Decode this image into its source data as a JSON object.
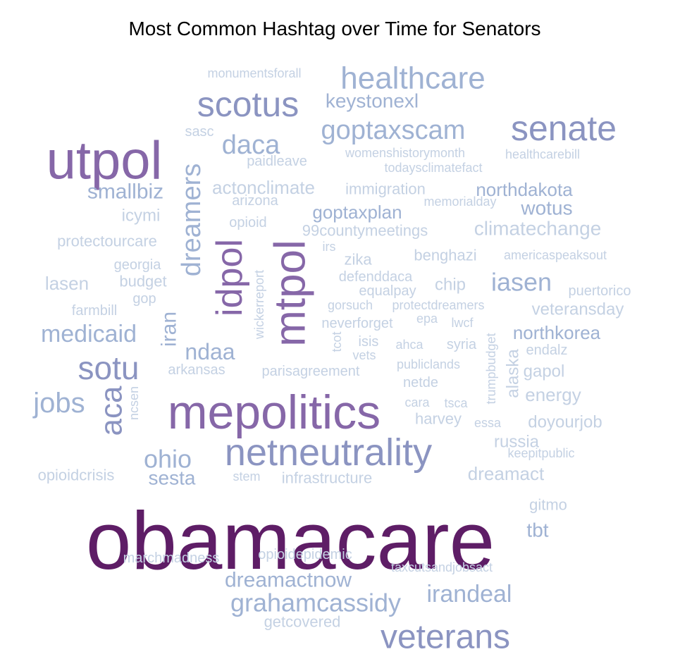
{
  "title": "Most Common Hashtag over Time for Senators",
  "colors": {
    "dark": "#5e1d66",
    "purple": "#8667a8",
    "blue": "#8b94c1",
    "light_blue": "#9fb2d3",
    "pale": "#c4d1e3"
  },
  "words": [
    {
      "text": "obamacare",
      "tone": "dark"
    },
    {
      "text": "utpol",
      "tone": "purple"
    },
    {
      "text": "mepolitics",
      "tone": "purple"
    },
    {
      "text": "mtpol",
      "tone": "purple"
    },
    {
      "text": "idpol",
      "tone": "purple"
    },
    {
      "text": "netneutrality",
      "tone": "blue"
    },
    {
      "text": "senate",
      "tone": "blue"
    },
    {
      "text": "scotus",
      "tone": "blue"
    },
    {
      "text": "veterans",
      "tone": "blue"
    },
    {
      "text": "sotu",
      "tone": "blue"
    },
    {
      "text": "aca",
      "tone": "blue"
    },
    {
      "text": "healthcare",
      "tone": "light_blue"
    },
    {
      "text": "goptaxscam",
      "tone": "light_blue"
    },
    {
      "text": "daca",
      "tone": "light_blue"
    },
    {
      "text": "dreamers",
      "tone": "light_blue"
    },
    {
      "text": "jobs",
      "tone": "light_blue"
    },
    {
      "text": "medicaid",
      "tone": "light_blue"
    },
    {
      "text": "ohio",
      "tone": "light_blue"
    },
    {
      "text": "grahamcassidy",
      "tone": "light_blue"
    },
    {
      "text": "irandeal",
      "tone": "light_blue"
    },
    {
      "text": "iasen",
      "tone": "light_blue"
    },
    {
      "text": "keystonexl",
      "tone": "light_blue"
    },
    {
      "text": "iran",
      "tone": "light_blue"
    },
    {
      "text": "ndaa",
      "tone": "light_blue"
    },
    {
      "text": "dreamactnow",
      "tone": "light_blue"
    },
    {
      "text": "smallbiz",
      "tone": "light_blue"
    },
    {
      "text": "sesta",
      "tone": "light_blue"
    },
    {
      "text": "tbt",
      "tone": "light_blue"
    },
    {
      "text": "northdakota",
      "tone": "light_blue"
    },
    {
      "text": "wotus",
      "tone": "light_blue"
    },
    {
      "text": "northkorea",
      "tone": "light_blue"
    },
    {
      "text": "climatechange",
      "tone": "pale"
    },
    {
      "text": "goptaxplan",
      "tone": "light_blue"
    },
    {
      "text": "dreamact",
      "tone": "pale"
    },
    {
      "text": "russia",
      "tone": "pale"
    },
    {
      "text": "energy",
      "tone": "pale"
    },
    {
      "text": "doyourjob",
      "tone": "pale"
    },
    {
      "text": "gapol",
      "tone": "pale"
    },
    {
      "text": "alaska",
      "tone": "pale"
    },
    {
      "text": "acton­climate",
      "tone": "pale"
    },
    {
      "text": "immigration",
      "tone": "pale"
    },
    {
      "text": "99countymeetings",
      "tone": "pale"
    },
    {
      "text": "protectourcare",
      "tone": "pale"
    },
    {
      "text": "lasen",
      "tone": "pale"
    },
    {
      "text": "icymi",
      "tone": "pale"
    },
    {
      "text": "opioidcrisis",
      "tone": "pale"
    },
    {
      "text": "infrastructure",
      "tone": "pale"
    },
    {
      "text": "veteransday",
      "tone": "pale"
    },
    {
      "text": "benghazi",
      "tone": "pale"
    },
    {
      "text": "americaspeaksout",
      "tone": "pale"
    },
    {
      "text": "puertorico",
      "tone": "pale"
    },
    {
      "text": "chip",
      "tone": "pale"
    },
    {
      "text": "zika",
      "tone": "pale"
    },
    {
      "text": "defenddaca",
      "tone": "pale"
    },
    {
      "text": "equalpay",
      "tone": "pale"
    },
    {
      "text": "neverforget",
      "tone": "pale"
    },
    {
      "text": "gorsuch",
      "tone": "pale"
    },
    {
      "text": "protectdreamers",
      "tone": "pale"
    },
    {
      "text": "epa",
      "tone": "pale"
    },
    {
      "text": "lwcf",
      "tone": "pale"
    },
    {
      "text": "isis",
      "tone": "pale"
    },
    {
      "text": "ahca",
      "tone": "pale"
    },
    {
      "text": "syria",
      "tone": "pale"
    },
    {
      "text": "vets",
      "tone": "pale"
    },
    {
      "text": "publiclands",
      "tone": "pale"
    },
    {
      "text": "endalz",
      "tone": "pale"
    },
    {
      "text": "parisagreement",
      "tone": "pale"
    },
    {
      "text": "arkansas",
      "tone": "pale"
    },
    {
      "text": "netde",
      "tone": "pale"
    },
    {
      "text": "cara",
      "tone": "pale"
    },
    {
      "text": "tsca",
      "tone": "pale"
    },
    {
      "text": "harvey",
      "tone": "pale"
    },
    {
      "text": "essa",
      "tone": "pale"
    },
    {
      "text": "keepitpublic",
      "tone": "pale"
    },
    {
      "text": "wickerreport",
      "tone": "pale"
    },
    {
      "text": "tcot",
      "tone": "pale"
    },
    {
      "text": "trumpbudget",
      "tone": "pale"
    },
    {
      "text": "ncsen",
      "tone": "pale"
    },
    {
      "text": "gitmo",
      "tone": "pale"
    },
    {
      "text": "marchmadness",
      "tone": "pale"
    },
    {
      "text": "opioidepidemic",
      "tone": "pale"
    },
    {
      "text": "taxcutsandjobsact",
      "tone": "pale"
    },
    {
      "text": "getcovered",
      "tone": "pale"
    },
    {
      "text": "stem",
      "tone": "pale"
    },
    {
      "text": "monumentsforall",
      "tone": "pale"
    },
    {
      "text": "sasc",
      "tone": "pale"
    },
    {
      "text": "paidleave",
      "tone": "pale"
    },
    {
      "text": "womenshistorymonth",
      "tone": "pale"
    },
    {
      "text": "healthcarebill",
      "tone": "pale"
    },
    {
      "text": "todaysclimatefact",
      "tone": "pale"
    },
    {
      "text": "memorialday",
      "tone": "pale"
    },
    {
      "text": "arizona",
      "tone": "pale"
    },
    {
      "text": "opioid",
      "tone": "pale"
    },
    {
      "text": "irs",
      "tone": "pale"
    },
    {
      "text": "georgia",
      "tone": "pale"
    },
    {
      "text": "budget",
      "tone": "pale"
    },
    {
      "text": "gop",
      "tone": "pale"
    },
    {
      "text": "farmbill",
      "tone": "pale"
    }
  ]
}
